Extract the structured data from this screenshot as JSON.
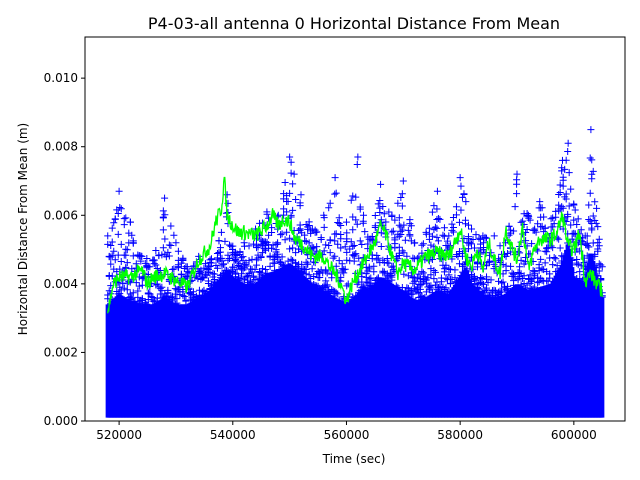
{
  "chart_data": {
    "type": "scatter",
    "title": "P4-03-all antenna 0 Horizontal Distance From Mean",
    "xlabel": "Time (sec)",
    "ylabel": "Horizontal Distance From Mean (m)",
    "xlim": [
      514000,
      609000
    ],
    "ylim": [
      0,
      0.0112
    ],
    "x_ticks": [
      520000,
      540000,
      560000,
      580000,
      600000
    ],
    "x_tick_labels": [
      "520000",
      "540000",
      "560000",
      "580000",
      "600000"
    ],
    "y_ticks": [
      0,
      0.002,
      0.004,
      0.006,
      0.008,
      0.01
    ],
    "y_tick_labels": [
      "0.000",
      "0.002",
      "0.004",
      "0.006",
      "0.008",
      "0.010"
    ],
    "grid": false,
    "series": [
      {
        "style": "scatter",
        "marker": "+",
        "color": "#0000ff",
        "x_range": [
          518000,
          605000
        ],
        "envelope": {
          "x": [
            518000,
            520000,
            522000,
            524000,
            526000,
            528000,
            530000,
            532000,
            534000,
            536000,
            538000,
            539000,
            540000,
            542000,
            544000,
            546000,
            548000,
            550000,
            552000,
            554000,
            556000,
            558000,
            560000,
            562000,
            563000,
            564000,
            566000,
            568000,
            570000,
            572000,
            574000,
            576000,
            578000,
            580000,
            581000,
            582000,
            584000,
            586000,
            588000,
            590000,
            592000,
            594000,
            596000,
            598000,
            599000,
            600000,
            602000,
            603000,
            604000,
            605000
          ],
          "max": [
            0.0054,
            0.0067,
            0.0058,
            0.0048,
            0.0047,
            0.0065,
            0.0052,
            0.0045,
            0.0048,
            0.0047,
            0.0055,
            0.0066,
            0.0051,
            0.0052,
            0.0056,
            0.0061,
            0.006,
            0.0077,
            0.0066,
            0.0056,
            0.006,
            0.0071,
            0.0058,
            0.0077,
            0.006,
            0.0053,
            0.0069,
            0.006,
            0.007,
            0.0052,
            0.0055,
            0.0067,
            0.0054,
            0.0071,
            0.0064,
            0.0056,
            0.0054,
            0.0054,
            0.0052,
            0.0072,
            0.006,
            0.0064,
            0.0059,
            0.0076,
            0.0081,
            0.0063,
            0.0054,
            0.0085,
            0.0062,
            0.0045
          ],
          "dense_top": [
            0.0034,
            0.0037,
            0.0035,
            0.0034,
            0.0034,
            0.0036,
            0.0034,
            0.0034,
            0.0036,
            0.0038,
            0.0042,
            0.0044,
            0.0042,
            0.004,
            0.004,
            0.0043,
            0.0044,
            0.0046,
            0.0043,
            0.004,
            0.0038,
            0.0036,
            0.0034,
            0.0037,
            0.0039,
            0.0038,
            0.0042,
            0.004,
            0.0038,
            0.0035,
            0.0036,
            0.0038,
            0.0037,
            0.0042,
            0.0045,
            0.004,
            0.0037,
            0.0036,
            0.0037,
            0.004,
            0.0038,
            0.0039,
            0.004,
            0.0046,
            0.0052,
            0.0042,
            0.004,
            0.005,
            0.0042,
            0.0036
          ],
          "min": [
            0.0001,
            0.0001,
            0.0001,
            0.0001,
            0.0001,
            0.0001,
            0.0001,
            0.0001,
            0.0001,
            0.0001,
            0.0001,
            0.0001,
            0.0001,
            0.0001,
            0.0001,
            0.0001,
            0.0001,
            0.0001,
            0.0001,
            0.0001,
            0.0001,
            0.0001,
            0.0001,
            0.0001,
            0.0001,
            0.0001,
            0.0001,
            0.0001,
            0.0001,
            0.0001,
            0.0001,
            0.0001,
            0.0001,
            0.0001,
            0.0001,
            0.0001,
            0.0001,
            0.0001,
            0.0001,
            0.0001,
            0.0001,
            0.0001,
            0.0001,
            0.0001,
            0.0001,
            0.0001,
            0.0001,
            0.0001,
            0.0001,
            0.0001
          ]
        }
      },
      {
        "style": "line",
        "color": "#00ff00",
        "x": [
          518000,
          519000,
          520000,
          522000,
          524000,
          525000,
          526000,
          528000,
          530000,
          532000,
          534000,
          536000,
          537000,
          538000,
          538500,
          539000,
          540000,
          541000,
          542000,
          544000,
          546000,
          547000,
          548000,
          549000,
          550000,
          551000,
          552000,
          554000,
          556000,
          557000,
          558000,
          559000,
          560000,
          561000,
          562000,
          563000,
          564000,
          565000,
          566000,
          567000,
          568000,
          569000,
          570000,
          572000,
          574000,
          576000,
          578000,
          579000,
          580000,
          581000,
          582000,
          583000,
          584000,
          585000,
          586000,
          587000,
          588000,
          589000,
          590000,
          591000,
          592000,
          593000,
          594000,
          596000,
          597000,
          598000,
          599000,
          600000,
          601000,
          602000,
          603000,
          604000,
          605000
        ],
        "y": [
          0.0032,
          0.004,
          0.0042,
          0.0042,
          0.0044,
          0.004,
          0.0042,
          0.0043,
          0.0041,
          0.0039,
          0.0047,
          0.0051,
          0.0058,
          0.0062,
          0.0071,
          0.006,
          0.0057,
          0.0055,
          0.0055,
          0.0054,
          0.0057,
          0.006,
          0.0057,
          0.0059,
          0.0058,
          0.0053,
          0.0052,
          0.0048,
          0.0048,
          0.0045,
          0.0043,
          0.004,
          0.0035,
          0.004,
          0.0043,
          0.0046,
          0.0049,
          0.0052,
          0.0057,
          0.0054,
          0.0048,
          0.0043,
          0.0046,
          0.0044,
          0.0048,
          0.0049,
          0.0048,
          0.0052,
          0.0056,
          0.0048,
          0.0045,
          0.005,
          0.0044,
          0.0052,
          0.0047,
          0.0043,
          0.0056,
          0.0051,
          0.0047,
          0.0057,
          0.0044,
          0.005,
          0.0053,
          0.0053,
          0.0055,
          0.006,
          0.0051,
          0.005,
          0.0055,
          0.0041,
          0.0043,
          0.004,
          0.0038
        ]
      }
    ]
  }
}
